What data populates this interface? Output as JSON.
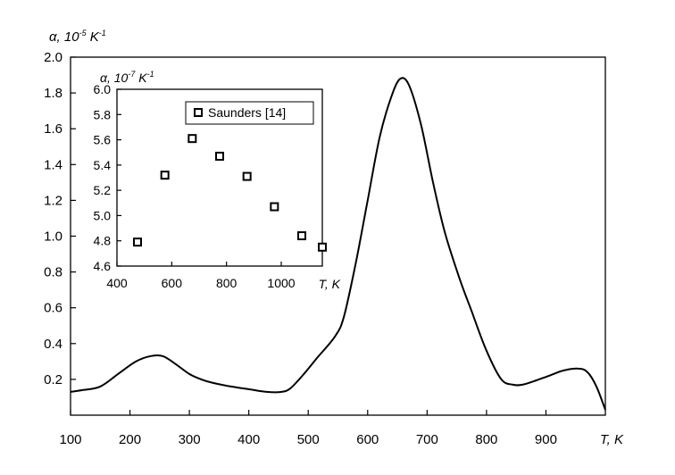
{
  "chart_data": [
    {
      "type": "line",
      "xlabel": "T, K",
      "ylabel": {
        "base": "α, 10",
        "exp": "-5",
        "unit": " K",
        "unit_exp": "-1"
      },
      "xlim": [
        100,
        1000
      ],
      "ylim": [
        0.0,
        2.0
      ],
      "xticks": [
        "100",
        "200",
        "300",
        "400",
        "500",
        "600",
        "700",
        "800",
        "900"
      ],
      "yticks": [
        "0.2",
        "0.4",
        "0.6",
        "0.8",
        "1.0",
        "1.2",
        "1.4",
        "1.6",
        "1.8",
        "2.0"
      ],
      "grid": false,
      "series": [
        {
          "x": [
            100,
            120,
            150,
            180,
            210,
            235,
            255,
            275,
            300,
            320,
            340,
            370,
            400,
            430,
            455,
            470,
            490,
            515,
            545,
            560,
            580,
            600,
            620,
            640,
            655,
            670,
            690,
            710,
            730,
            755,
            775,
            800,
            825,
            845,
            860,
            880,
            905,
            930,
            955,
            970,
            985,
            1000
          ],
          "y": [
            0.13,
            0.14,
            0.16,
            0.23,
            0.3,
            0.33,
            0.33,
            0.29,
            0.23,
            0.2,
            0.18,
            0.16,
            0.145,
            0.13,
            0.13,
            0.15,
            0.22,
            0.32,
            0.44,
            0.55,
            0.85,
            1.2,
            1.55,
            1.78,
            1.88,
            1.84,
            1.62,
            1.3,
            1.02,
            0.76,
            0.58,
            0.36,
            0.2,
            0.17,
            0.17,
            0.19,
            0.22,
            0.25,
            0.26,
            0.24,
            0.16,
            0.03
          ]
        }
      ]
    },
    {
      "type": "scatter",
      "xlabel": "T, K",
      "ylabel": {
        "base": "α, 10",
        "exp": "-7",
        "unit": " K",
        "unit_exp": "-1"
      },
      "xlim": [
        400,
        1150
      ],
      "ylim": [
        4.6,
        6.0
      ],
      "xticks": [
        "400",
        "600",
        "800",
        "1000"
      ],
      "yticks": [
        "4.6",
        "4.8",
        "5.0",
        "5.2",
        "5.4",
        "5.6",
        "5.8",
        "6.0"
      ],
      "grid": false,
      "legend": "top-right",
      "series": [
        {
          "name": "Saunders [14]",
          "x": [
            475,
            575,
            675,
            775,
            875,
            975,
            1075,
            1150
          ],
          "y": [
            4.79,
            5.32,
            5.61,
            5.47,
            5.31,
            5.07,
            4.84,
            4.75
          ]
        }
      ]
    }
  ]
}
